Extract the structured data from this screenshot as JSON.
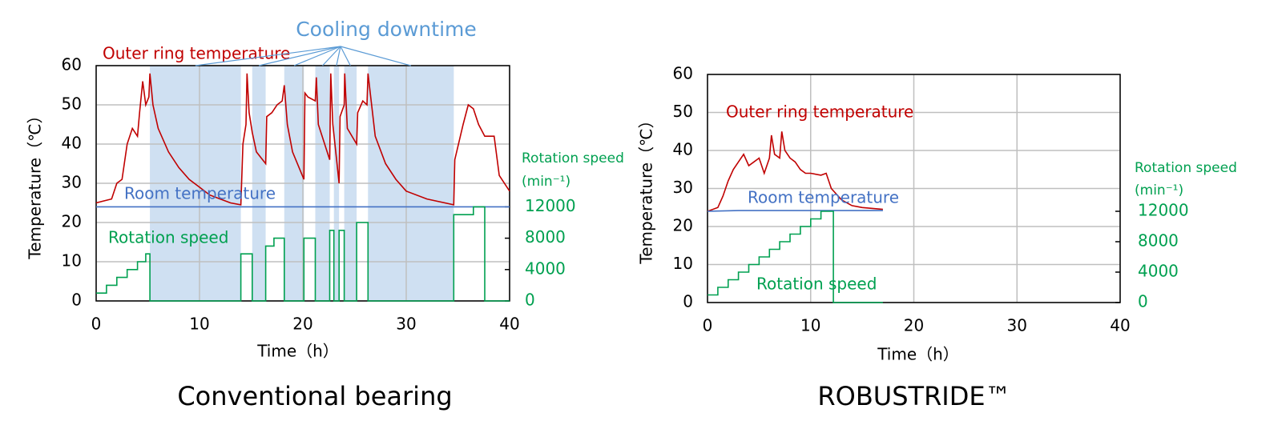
{
  "chart_data": [
    {
      "type": "line",
      "caption": "Conventional bearing",
      "xlabel": "Time（h）",
      "ylabel": "Temperature（℃）",
      "y2label": [
        "Rotation speed",
        "(min⁻¹)"
      ],
      "annotation": "Cooling downtime",
      "annotation_color": "#5b9bd5",
      "shaded_regions": [
        [
          5.2,
          14
        ],
        [
          15.1,
          16.4
        ],
        [
          18.2,
          20.1
        ],
        [
          21.2,
          22.6
        ],
        [
          23,
          23.5
        ],
        [
          24,
          25.2
        ],
        [
          26.3,
          34.6
        ]
      ],
      "shade_color": "#cfe0f2",
      "xlim": [
        0,
        40
      ],
      "xticks": [
        0,
        10,
        20,
        30,
        40
      ],
      "ylim": [
        0,
        60
      ],
      "yticks": [
        0,
        10,
        20,
        30,
        40,
        50,
        60
      ],
      "y2lim": [
        0,
        30000
      ],
      "y2ticks": [
        0,
        4000,
        8000,
        12000
      ],
      "y2tick_color": "#00a050",
      "grid": true,
      "series": [
        {
          "name": "Outer ring temperature",
          "color": "#c00000",
          "x": [
            0,
            1.5,
            2,
            2.5,
            3,
            3.5,
            4,
            4.2,
            4.5,
            4.8,
            5.1,
            5.2,
            5.5,
            6,
            7,
            8,
            9,
            10,
            11,
            12,
            13,
            14,
            14.2,
            14.5,
            14.6,
            14.8,
            15.1,
            15.5,
            16.4,
            16.5,
            17,
            17.5,
            18,
            18.2,
            18.5,
            19,
            20.1,
            20.2,
            20.5,
            21.2,
            21.3,
            21.5,
            22.6,
            22.7,
            22.9,
            23.5,
            23.6,
            24,
            24.05,
            24.3,
            25.2,
            25.3,
            25.8,
            26.2,
            26.3,
            27,
            28,
            29,
            30,
            32,
            34.6,
            34.7,
            35.5,
            36,
            36.5,
            37,
            37.6,
            38.5,
            39,
            40
          ],
          "values": [
            25,
            26,
            30,
            31,
            40,
            44,
            42,
            48,
            56,
            50,
            52,
            58,
            50,
            44,
            38,
            34,
            31,
            29,
            27,
            26,
            25,
            24.5,
            40,
            45,
            58,
            48,
            43,
            38,
            35,
            47,
            48,
            50,
            51,
            55,
            45,
            38,
            31,
            53,
            52,
            51,
            57,
            45,
            36,
            58,
            45,
            30,
            47,
            50,
            58,
            44,
            40,
            48,
            51,
            50,
            58,
            42,
            35,
            31,
            28,
            26,
            24.5,
            36,
            45,
            50,
            49,
            45,
            42,
            42,
            32,
            28
          ]
        },
        {
          "name": "Room temperature",
          "color": "#4472c4",
          "x": [
            0,
            40
          ],
          "values": [
            24,
            24
          ]
        },
        {
          "name": "Rotation speed",
          "color": "#00a050",
          "axis": "y2",
          "x": [
            0,
            1,
            1,
            2,
            2,
            3,
            3,
            4,
            4,
            4.8,
            4.8,
            5.2,
            5.2,
            14,
            14,
            15.1,
            15.1,
            16.4,
            16.4,
            17.2,
            17.2,
            18.2,
            18.2,
            20.1,
            20.1,
            21.2,
            21.2,
            22.6,
            22.6,
            23,
            23,
            23.5,
            23.5,
            24,
            24,
            25.2,
            25.2,
            26.3,
            26.3,
            34.6,
            34.6,
            36.5,
            36.5,
            37.6,
            37.6,
            40
          ],
          "values": [
            1000,
            1000,
            2000,
            2000,
            3000,
            3000,
            4000,
            4000,
            5000,
            5000,
            6000,
            6000,
            0,
            0,
            6000,
            6000,
            0,
            0,
            7000,
            7000,
            8000,
            8000,
            0,
            0,
            8000,
            8000,
            0,
            0,
            9000,
            9000,
            0,
            0,
            9000,
            9000,
            0,
            0,
            10000,
            10000,
            0,
            0,
            11000,
            11000,
            12000,
            12000,
            0,
            0
          ]
        }
      ]
    },
    {
      "type": "line",
      "caption": "ROBUSTRIDE™",
      "xlabel": "Time（h）",
      "ylabel": "Temperature（℃）",
      "y2label": [
        "Rotation speed",
        "(min⁻¹)"
      ],
      "xlim": [
        0,
        40
      ],
      "xticks": [
        0,
        10,
        20,
        30,
        40
      ],
      "ylim": [
        0,
        60
      ],
      "yticks": [
        0,
        10,
        20,
        30,
        40,
        50,
        60
      ],
      "y2lim": [
        0,
        30000
      ],
      "y2ticks": [
        0,
        4000,
        8000,
        12000
      ],
      "y2tick_color": "#00a050",
      "grid": true,
      "series": [
        {
          "name": "Outer ring temperature",
          "color": "#c00000",
          "x": [
            0,
            1,
            1.5,
            2,
            2.5,
            3,
            3.5,
            4,
            4.5,
            5,
            5.5,
            6,
            6.2,
            6.5,
            7,
            7.2,
            7.5,
            8,
            8.5,
            9,
            9.5,
            10,
            11,
            11.5,
            12,
            13,
            14,
            15,
            17
          ],
          "values": [
            24,
            25,
            28,
            32,
            35,
            37,
            39,
            36,
            37,
            38,
            34,
            38,
            44,
            39,
            38,
            45,
            40,
            38,
            37,
            35,
            34,
            34,
            33.5,
            34,
            30,
            27,
            25.5,
            25,
            24.5
          ]
        },
        {
          "name": "Room temperature",
          "color": "#4472c4",
          "x": [
            0,
            3,
            17
          ],
          "values": [
            24,
            24.2,
            24.2
          ]
        },
        {
          "name": "Rotation speed",
          "color": "#00a050",
          "axis": "y2",
          "x": [
            0,
            1,
            1,
            2,
            2,
            3,
            3,
            4,
            4,
            5,
            5,
            6,
            6,
            7,
            7,
            8,
            8,
            9,
            9,
            10,
            10,
            11,
            11,
            12.2,
            12.2,
            17
          ],
          "values": [
            1000,
            1000,
            2000,
            2000,
            3000,
            3000,
            4000,
            4000,
            5000,
            5000,
            6000,
            6000,
            7000,
            7000,
            8000,
            8000,
            9000,
            9000,
            10000,
            10000,
            11000,
            11000,
            12000,
            12000,
            0,
            0
          ]
        }
      ]
    }
  ]
}
